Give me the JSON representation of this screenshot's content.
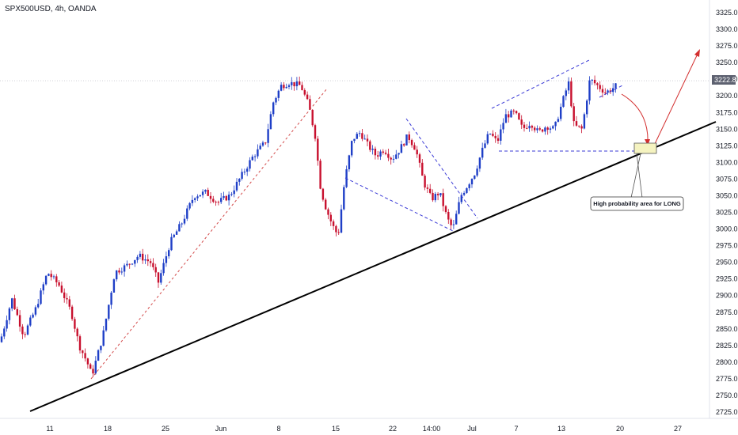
{
  "header": {
    "symbol_title": "SPX500USD, 4h, OANDA"
  },
  "chart_data": {
    "type": "candlestick",
    "title": "SPX500USD, 4h, OANDA",
    "y_axis": {
      "ticks": [
        "3325.0",
        "3300.0",
        "3275.0",
        "3250.0",
        "3225.0",
        "3200.0",
        "3175.0",
        "3150.0",
        "3125.0",
        "3100.0",
        "3075.0",
        "3050.0",
        "3025.0",
        "3000.0",
        "2975.0",
        "2950.0",
        "2925.0",
        "2900.0",
        "2875.0",
        "2850.0",
        "2825.0",
        "2800.0",
        "2775.0",
        "2750.0",
        "2725.0"
      ],
      "range": [
        2718,
        3337
      ],
      "current_price_label": "3222.8",
      "current_price": 3222.8
    },
    "x_axis": {
      "ticks": [
        "11",
        "18",
        "25",
        "Jun",
        "8",
        "15",
        "22",
        "14:00",
        "Jul",
        "7",
        "13",
        "20",
        "27"
      ]
    },
    "colors": {
      "up": "#1f3fc7",
      "down": "#c8102e",
      "current_price_bg": "#5d6170"
    },
    "annotations": {
      "label": "High probability area for LONG",
      "support_trendline": [
        [
          "2020-05-08",
          2729
        ],
        [
          "2020-07-31",
          3158
        ]
      ],
      "target_arrow": true
    }
  }
}
